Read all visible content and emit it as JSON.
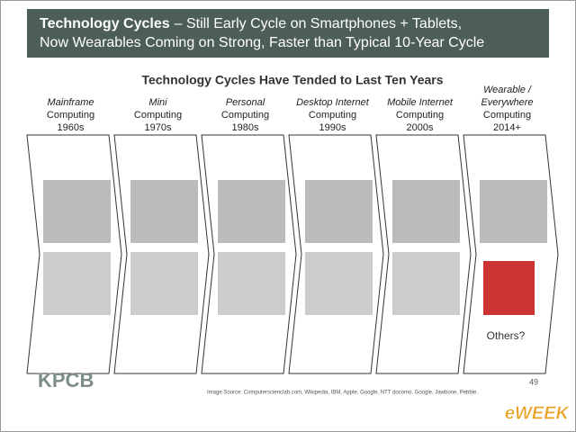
{
  "header": {
    "title_bold": "Technology Cycles",
    "title_rest": "– Still Early Cycle on Smartphones + Tablets,",
    "title_line2": "Now Wearables Coming on Strong, Faster than Typical 10-Year Cycle"
  },
  "subtitle": "Technology Cycles Have Tended to Last Ten Years",
  "eras": [
    {
      "name": [
        "Mainframe"
      ],
      "label": "Computing",
      "years": "1960s"
    },
    {
      "name": [
        "Mini"
      ],
      "label": "Computing",
      "years": "1970s"
    },
    {
      "name": [
        "Personal"
      ],
      "label": "Computing",
      "years": "1980s"
    },
    {
      "name": [
        "Desktop Internet"
      ],
      "label": "Computing",
      "years": "1990s"
    },
    {
      "name": [
        "Mobile Internet"
      ],
      "label": "Computing",
      "years": "2000s"
    },
    {
      "name": [
        "Wearable /",
        "Everywhere"
      ],
      "label": "Computing",
      "years": "2014+"
    }
  ],
  "others": "Others?",
  "logo": "KPCB",
  "page_number": "49",
  "source": "Image Source: Computerscienclab.com, Wikipedia, IBM, Apple, Google, NTT docomo, Google, Jawbone, Pebble.",
  "watermark": "eWEEK"
}
